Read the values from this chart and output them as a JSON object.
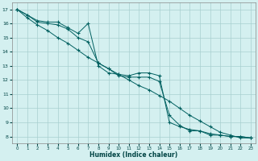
{
  "xlabel": "Humidex (Indice chaleur)",
  "bg_color": "#d4f0f0",
  "grid_color": "#a8d0d0",
  "line_color": "#006060",
  "xlim": [
    -0.5,
    23.5
  ],
  "ylim": [
    7.5,
    17.5
  ],
  "xticks": [
    0,
    1,
    2,
    3,
    4,
    5,
    6,
    7,
    8,
    9,
    10,
    11,
    12,
    13,
    14,
    15,
    16,
    17,
    18,
    19,
    20,
    21,
    22,
    23
  ],
  "yticks": [
    8,
    9,
    10,
    11,
    12,
    13,
    14,
    15,
    16,
    17
  ],
  "series": [
    {
      "x": [
        0,
        1,
        2,
        3,
        4,
        5,
        6,
        7,
        8,
        9,
        10,
        11,
        12,
        13,
        14,
        15,
        16,
        17,
        18,
        19,
        20,
        21,
        22,
        23
      ],
      "y": [
        17,
        16.6,
        16.2,
        16.1,
        16.1,
        15.7,
        15.3,
        16.0,
        13.0,
        12.5,
        12.4,
        12.3,
        12.5,
        12.5,
        12.3,
        9.0,
        8.7,
        8.5,
        8.4,
        8.1,
        8.1,
        8.0,
        8.0,
        7.9
      ]
    },
    {
      "x": [
        0,
        1,
        2,
        3,
        4,
        5,
        6,
        7,
        8,
        9,
        10,
        11,
        12,
        13,
        14,
        15,
        16,
        17,
        18,
        19,
        20,
        21,
        22,
        23
      ],
      "y": [
        17,
        16.6,
        16.1,
        16.0,
        15.9,
        15.6,
        15.0,
        14.7,
        13.2,
        12.8,
        12.3,
        12.2,
        12.2,
        12.2,
        11.9,
        9.5,
        8.8,
        8.4,
        8.4,
        8.2,
        8.1,
        8.0,
        8.0,
        7.9
      ]
    },
    {
      "x": [
        0,
        1,
        2,
        3,
        4,
        5,
        6,
        7,
        8,
        9,
        10,
        11,
        12,
        13,
        14,
        15,
        16,
        17,
        18,
        19,
        20,
        21,
        22,
        23
      ],
      "y": [
        17,
        16.4,
        15.9,
        15.5,
        15.0,
        14.6,
        14.1,
        13.6,
        13.2,
        12.8,
        12.4,
        12.0,
        11.6,
        11.3,
        10.9,
        10.5,
        10.0,
        9.5,
        9.1,
        8.7,
        8.3,
        8.1,
        7.9,
        7.9
      ]
    }
  ]
}
